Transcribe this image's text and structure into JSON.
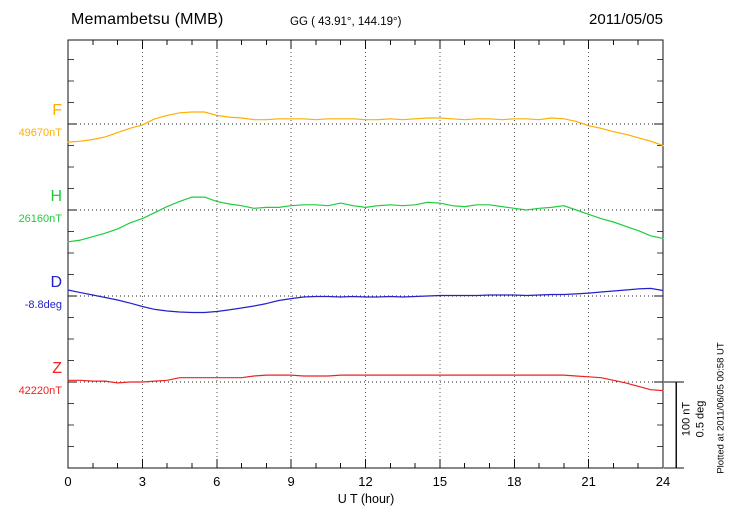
{
  "page": {
    "background": "#ffffff",
    "frame_color": "#111111"
  },
  "header": {
    "station_title": "Memambetsu (MMB)",
    "coordinates": "GG ( 43.91°, 144.19°)",
    "date": "2011/05/05"
  },
  "x_axis": {
    "label": "U T (hour)",
    "ticks": [
      "0",
      "3",
      "6",
      "9",
      "12",
      "15",
      "18",
      "21",
      "24"
    ]
  },
  "scale_bar": {
    "nt_label": "100 nT",
    "deg_label": "0.5 deg"
  },
  "footer_note": "Plotted at 2011/06/05 00:58 UT",
  "chart_data": {
    "type": "line",
    "title": "Memambetsu (MMB) magnetogram 2011/05/05",
    "xlabel": "U T (hour)",
    "x_range": [
      0,
      24
    ],
    "x_ticks": [
      0,
      3,
      6,
      9,
      12,
      15,
      18,
      21,
      24
    ],
    "x_step_hours": 0.5,
    "grid": "dotted vertical lines every 3 h; dotted horizontal reference line per component",
    "legend_position": "left margin (component letter above reference value)",
    "scale": {
      "nT_per_division": 100,
      "deg_per_division": 0.5
    },
    "series": [
      {
        "name": "F",
        "unit": "nT",
        "reference_label": "49670nT",
        "reference_value": 49670,
        "color": "#FFAE00",
        "offsets": [
          -21,
          -20,
          -18,
          -15,
          -10,
          -5,
          -1,
          6,
          10,
          13,
          14,
          14,
          10,
          8,
          7,
          5,
          5,
          6,
          6,
          6,
          5,
          6,
          6,
          6,
          5,
          5,
          6,
          5,
          6,
          7,
          7,
          6,
          5,
          6,
          6,
          5,
          6,
          6,
          5,
          7,
          6,
          3,
          -2,
          -5,
          -9,
          -12,
          -16,
          -20,
          -25
        ]
      },
      {
        "name": "H",
        "unit": "nT",
        "reference_label": "26160nT",
        "reference_value": 26160,
        "color": "#1ECC3C",
        "offsets": [
          -37,
          -35,
          -31,
          -27,
          -22,
          -15,
          -10,
          -3,
          4,
          10,
          15,
          15,
          10,
          7,
          5,
          2,
          3,
          3,
          5,
          6,
          6,
          5,
          8,
          5,
          3,
          5,
          6,
          5,
          6,
          9,
          8,
          5,
          4,
          6,
          6,
          4,
          2,
          0,
          2,
          3,
          5,
          0,
          -5,
          -10,
          -14,
          -19,
          -24,
          -30,
          -33
        ]
      },
      {
        "name": "D",
        "unit": "deg",
        "reference_label": "-8.8deg",
        "reference_value": -8.8,
        "color": "#2222CC",
        "offsets": [
          0.035,
          0.02,
          0.006,
          -0.009,
          -0.023,
          -0.041,
          -0.061,
          -0.078,
          -0.087,
          -0.093,
          -0.096,
          -0.096,
          -0.09,
          -0.081,
          -0.07,
          -0.058,
          -0.044,
          -0.026,
          -0.015,
          -0.006,
          -0.003,
          -0.003,
          -0.006,
          -0.003,
          -0.006,
          -0.006,
          -0.003,
          -0.006,
          -0.003,
          0.0,
          0.003,
          0.003,
          0.003,
          0.003,
          0.006,
          0.006,
          0.006,
          0.003,
          0.006,
          0.009,
          0.009,
          0.012,
          0.017,
          0.023,
          0.029,
          0.035,
          0.041,
          0.044,
          0.032
        ]
      },
      {
        "name": "Z",
        "unit": "nT",
        "reference_label": "42220nT",
        "reference_value": 42220,
        "color": "#EE2222",
        "offsets": [
          2,
          2,
          1,
          1,
          -1,
          0,
          0,
          1,
          2,
          5,
          5,
          5,
          5,
          5,
          5,
          7,
          8,
          8,
          8,
          7,
          7,
          7,
          8,
          8,
          8,
          8,
          8,
          8,
          8,
          8,
          8,
          8,
          8,
          8,
          8,
          8,
          8,
          8,
          8,
          8,
          8,
          7,
          6,
          5,
          2,
          -1,
          -5,
          -9,
          -10
        ]
      }
    ]
  }
}
